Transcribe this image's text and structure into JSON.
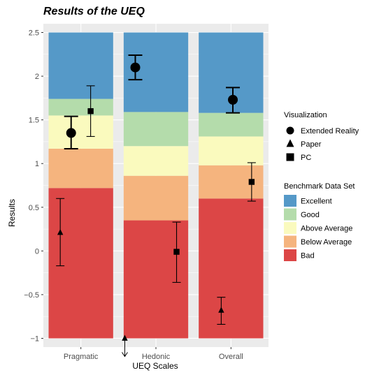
{
  "chart_data": {
    "type": "bar",
    "title": "Results of the UEQ",
    "xlabel": "UEQ Scales",
    "ylabel": "Results",
    "categories": [
      "Pragmatic",
      "Hedonic",
      "Overall"
    ],
    "ylim": [
      -1.1,
      2.6
    ],
    "yticks": [
      -1,
      -0.5,
      0,
      0.5,
      1,
      1.5,
      2,
      2.5
    ],
    "ytick_labels": [
      "−1",
      "−0.5",
      "0",
      "0.5",
      "1",
      "1.5",
      "2",
      "2.5"
    ],
    "grid": true,
    "background_color": "#ebebeb",
    "benchmark": {
      "legend_title": "Benchmark Data Set",
      "bottom": -1,
      "top": 2.5,
      "bands": [
        {
          "name": "Excellent",
          "color": "#5599c8"
        },
        {
          "name": "Good",
          "color": "#b4dcab"
        },
        {
          "name": "Above Average",
          "color": "#fafabe"
        },
        {
          "name": "Below Average",
          "color": "#f5b47e"
        },
        {
          "name": "Bad",
          "color": "#dc4646"
        }
      ],
      "bounds": {
        "Pragmatic": [
          -1,
          0.72,
          1.17,
          1.55,
          1.74,
          2.5
        ],
        "Hedonic": [
          -1,
          0.35,
          0.86,
          1.2,
          1.59,
          2.5
        ],
        "Overall": [
          -1,
          0.6,
          0.98,
          1.31,
          1.58,
          2.5
        ]
      }
    },
    "visualization": {
      "legend_title": "Visualization",
      "series": [
        {
          "name": "Extended Reality",
          "marker": "circle",
          "values": [
            1.35,
            2.1,
            1.73
          ],
          "err_low": [
            1.17,
            1.96,
            1.58
          ],
          "err_high": [
            1.54,
            2.24,
            1.87
          ]
        },
        {
          "name": "Paper",
          "marker": "triangle",
          "values": [
            0.21,
            -1.0,
            -0.68
          ],
          "err_low": [
            -0.17,
            null,
            -0.84
          ],
          "err_high": [
            0.6,
            null,
            -0.53
          ]
        },
        {
          "name": "PC",
          "marker": "square",
          "values": [
            1.6,
            -0.01,
            0.79
          ],
          "err_low": [
            1.31,
            -0.36,
            0.57
          ],
          "err_high": [
            1.89,
            0.33,
            1.01
          ]
        }
      ]
    },
    "annotations": [
      "Paper Hedonic value extends below −1 (downward arrow)"
    ]
  }
}
